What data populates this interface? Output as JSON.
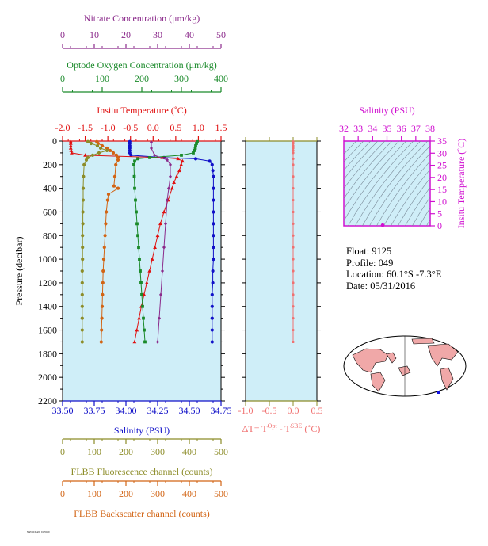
{
  "colors": {
    "nitrate": "#8b2a8b",
    "oxygen": "#1a8a2a",
    "temperature": "#e01010",
    "salinity": "#1010c8",
    "fluorescence": "#8c8c28",
    "backscatter": "#d26414",
    "deltaT": "#f07070",
    "ts_axis": "#d010d0",
    "panel_fill": "#cfeef8"
  },
  "info": {
    "float": "Float:  9125",
    "profile": "Profile:  049",
    "location": "Location:  60.1°S  -7.3°E",
    "date": "Date:  05/31/2016"
  },
  "footnote": "NAVOCEAN_9125049",
  "chart_data": [
    {
      "type": "line",
      "ylabel": "Pressure (decibar)",
      "ylim": [
        2200,
        0
      ],
      "yticks": [
        "0",
        "200",
        "400",
        "600",
        "800",
        "1000",
        "1200",
        "1400",
        "1600",
        "1800",
        "2000",
        "2200"
      ],
      "axes": {
        "nitrate": {
          "label": "Nitrate Concentration (μm/kg)",
          "range": [
            0,
            50
          ],
          "ticks": [
            "0",
            "10",
            "20",
            "30",
            "40",
            "50"
          ]
        },
        "oxygen": {
          "label": "Optode Oxygen Concentration (μm/kg)",
          "range": [
            0,
            400
          ],
          "ticks": [
            "0",
            "100",
            "200",
            "300",
            "400"
          ]
        },
        "temperature": {
          "label": "Insitu Temperature (˚C)",
          "range": [
            -2.0,
            1.5
          ],
          "ticks": [
            "-2.0",
            "-1.5",
            "-1.0",
            "-0.5",
            "0.0",
            "0.5",
            "1.0",
            "1.5"
          ]
        },
        "salinity": {
          "label": "Salinity (PSU)",
          "range": [
            33.5,
            34.75
          ],
          "ticks": [
            "33.50",
            "33.75",
            "34.00",
            "34.25",
            "34.50",
            "34.75"
          ]
        },
        "fluorescence": {
          "label": "FLBB Fluorescence channel (counts)",
          "range": [
            0,
            500
          ],
          "ticks": [
            "0",
            "100",
            "200",
            "300",
            "400",
            "500"
          ]
        },
        "backscatter": {
          "label": "FLBB Backscatter channel (counts)",
          "range": [
            0,
            500
          ],
          "ticks": [
            "0",
            "100",
            "200",
            "300",
            "400",
            "500"
          ]
        }
      },
      "series": [
        {
          "key": "salinity",
          "marker": "circle",
          "name": "Salinity",
          "pressure": [
            5,
            20,
            40,
            60,
            80,
            100,
            120,
            140,
            150,
            170,
            200,
            250,
            300,
            400,
            500,
            600,
            700,
            800,
            900,
            1000,
            1100,
            1200,
            1300,
            1400,
            1500,
            1600,
            1700
          ],
          "values": [
            34.03,
            34.03,
            34.03,
            34.03,
            34.03,
            34.03,
            34.04,
            34.3,
            34.55,
            34.66,
            34.68,
            34.685,
            34.69,
            34.69,
            34.69,
            34.69,
            34.69,
            34.69,
            34.69,
            34.69,
            34.685,
            34.685,
            34.68,
            34.68,
            34.68,
            34.68,
            34.68
          ]
        },
        {
          "key": "temperature",
          "marker": "triangle",
          "name": "Temperature",
          "pressure": [
            5,
            20,
            40,
            60,
            80,
            100,
            120,
            140,
            150,
            170,
            200,
            250,
            300,
            350,
            400,
            500,
            600,
            700,
            800,
            900,
            1000,
            1100,
            1200,
            1300,
            1400,
            1500,
            1600,
            1700
          ],
          "values": [
            -1.82,
            -1.82,
            -1.82,
            -1.82,
            -1.81,
            -1.8,
            -1.5,
            0.2,
            0.55,
            0.65,
            0.62,
            0.58,
            0.52,
            0.46,
            0.42,
            0.33,
            0.24,
            0.16,
            0.1,
            0.04,
            -0.02,
            -0.08,
            -0.14,
            -0.2,
            -0.26,
            -0.31,
            -0.36,
            -0.41
          ]
        },
        {
          "key": "oxygen",
          "marker": "square",
          "name": "Oxygen",
          "pressure": [
            5,
            20,
            40,
            60,
            80,
            100,
            120,
            140,
            150,
            170,
            200,
            300,
            400,
            500,
            600,
            700,
            800,
            900,
            1000,
            1100,
            1200,
            1300,
            1400,
            1500,
            1600,
            1700
          ],
          "values": [
            340,
            338,
            336,
            335,
            333,
            330,
            300,
            220,
            190,
            182,
            180,
            181,
            182,
            184,
            186,
            188,
            190,
            192,
            194,
            196,
            198,
            200,
            202,
            204,
            206,
            208
          ]
        },
        {
          "key": "nitrate",
          "marker": "diamond",
          "name": "Nitrate",
          "pressure": [
            10,
            60,
            120,
            160,
            200,
            300,
            400,
            500,
            700,
            900,
            1100,
            1300,
            1500,
            1700
          ],
          "values": [
            28,
            28,
            29,
            33,
            34,
            34,
            33.5,
            33,
            32.5,
            32,
            31.5,
            31,
            30.5,
            30
          ]
        },
        {
          "key": "backscatter",
          "marker": "circle",
          "name": "Backscatter",
          "pressure": [
            5,
            20,
            40,
            60,
            80,
            100,
            120,
            140,
            160,
            200,
            300,
            380,
            400,
            450,
            500,
            600,
            700,
            800,
            900,
            1000,
            1100,
            1200,
            1300,
            1400,
            1500,
            1600,
            1700
          ],
          "values": [
            108,
            112,
            125,
            140,
            150,
            160,
            170,
            175,
            175,
            168,
            165,
            162,
            175,
            145,
            142,
            138,
            136,
            134,
            132,
            130,
            128,
            127,
            126,
            125,
            124,
            123,
            122
          ]
        },
        {
          "key": "fluorescence",
          "marker": "circle",
          "name": "Fluorescence",
          "pressure": [
            5,
            20,
            40,
            60,
            80,
            100,
            120,
            140,
            160,
            200,
            300,
            400,
            500,
            600,
            700,
            800,
            900,
            1000,
            1100,
            1200,
            1300,
            1400,
            1500,
            1600,
            1700
          ],
          "values": [
            80,
            90,
            110,
            120,
            140,
            115,
            95,
            80,
            75,
            68,
            66,
            65,
            65,
            64,
            64,
            63,
            63,
            63,
            62,
            62,
            62,
            62,
            62,
            62,
            62
          ]
        }
      ]
    },
    {
      "type": "line",
      "xlabel": "ΔT= T",
      "xlabel_sup1": "Opt",
      "xlabel_mid": " - T",
      "xlabel_sup2": "SBE",
      "xlabel_end": " (˚C)",
      "xlim": [
        -1.0,
        0.5
      ],
      "xticks": [
        "-1.0",
        "-0.5",
        "0.0",
        "0.5"
      ],
      "ylim": [
        2200,
        0
      ],
      "series": [
        {
          "name": "Delta T",
          "pressure": [
            5,
            20,
            40,
            60,
            80,
            100,
            150,
            200,
            300,
            400,
            500,
            600,
            700,
            800,
            900,
            1000,
            1100,
            1200,
            1300,
            1400,
            1500,
            1600,
            1700
          ],
          "values": [
            0.0,
            0.0,
            0.0,
            0.0,
            0.0,
            0.0,
            0.0,
            0.0,
            0.0,
            0.0,
            0.0,
            0.0,
            0.0,
            0.0,
            0.0,
            0.0,
            0.0,
            0.0,
            0.0,
            0.0,
            0.0,
            0.0,
            0.0
          ]
        }
      ]
    },
    {
      "type": "scatter",
      "xlabel": "Salinity (PSU)",
      "ylabel": "Insitu Temperature (˚C)",
      "xlim": [
        32,
        38
      ],
      "ylim": [
        0,
        35
      ],
      "xticks": [
        "32",
        "33",
        "34",
        "35",
        "36",
        "37",
        "38"
      ],
      "yticks": [
        "0",
        "5",
        "10",
        "15",
        "20",
        "25",
        "30",
        "35"
      ],
      "points": [
        {
          "x": 34.7,
          "y": 0.3
        }
      ]
    }
  ]
}
